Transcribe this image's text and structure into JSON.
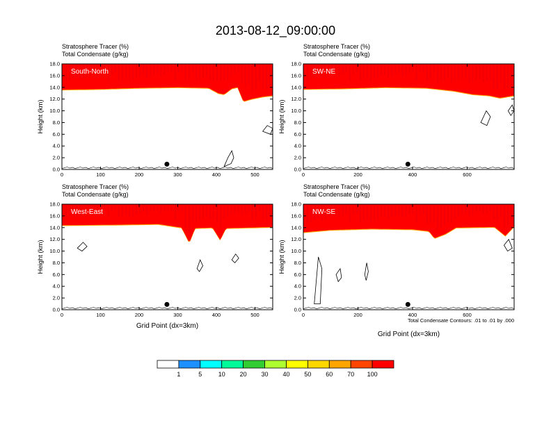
{
  "title": "2013-08-12_09:00:00",
  "colors": {
    "bands": [
      "#ffffff",
      "#1e90ff",
      "#00ffff",
      "#00fa9a",
      "#32cd32",
      "#adff2f",
      "#ffff00",
      "#ffd700",
      "#ffa500",
      "#ff4500",
      "#ff0000"
    ]
  },
  "colorbar": {
    "labels": [
      "1",
      "5",
      "10",
      "20",
      "30",
      "40",
      "50",
      "60",
      "70",
      "100"
    ]
  },
  "footnote": "Total Condensate Contours: .01 to .01 by .000",
  "chart_data": [
    {
      "type": "heatmap",
      "panel": "South-North",
      "left_title_1": "Stratosphere Tracer   (%)",
      "left_title_2": "Total Condensate   (g/kg)",
      "ylabel": "Height (km)",
      "xlabel": "",
      "xlim": [
        0,
        546
      ],
      "ylim": [
        0,
        18
      ],
      "xticks": [
        "0",
        "100",
        "200",
        "300",
        "400",
        "500"
      ],
      "xtick_values": [
        0,
        100,
        200,
        300,
        400,
        500
      ],
      "yticks": [
        "0.0",
        "2.0",
        "4.0",
        "6.0",
        "8.0",
        "10.0",
        "12.0",
        "14.0",
        "16.0",
        "18.0"
      ],
      "marker_x": 272,
      "tracer_base_km": [
        [
          0,
          13.2
        ],
        [
          100,
          13.3
        ],
        [
          200,
          13.5
        ],
        [
          300,
          13.6
        ],
        [
          380,
          13.5
        ],
        [
          405,
          12.6
        ],
        [
          420,
          12.4
        ],
        [
          440,
          13.4
        ],
        [
          455,
          13.6
        ],
        [
          470,
          11.2
        ],
        [
          490,
          11.6
        ],
        [
          520,
          12.0
        ],
        [
          546,
          12.2
        ]
      ],
      "condensate_contours": [
        [
          [
            420,
            0.5
          ],
          [
            430,
            2.0
          ],
          [
            440,
            3.2
          ],
          [
            445,
            2.0
          ],
          [
            438,
            1.0
          ]
        ],
        [
          [
            520,
            6.5
          ],
          [
            532,
            7.5
          ],
          [
            546,
            7.0
          ],
          [
            540,
            6.0
          ]
        ]
      ]
    },
    {
      "type": "heatmap",
      "panel": "SW-NE",
      "left_title_1": "Stratosphere Tracer   (%)",
      "left_title_2": "Total Condensate   (g/kg)",
      "ylabel": "Height (km)",
      "xlabel": "",
      "xlim": [
        0,
        772
      ],
      "ylim": [
        0,
        18
      ],
      "xticks": [
        "0",
        "200",
        "400",
        "600"
      ],
      "xtick_values": [
        0,
        200,
        400,
        600
      ],
      "yticks": [
        "0.0",
        "2.0",
        "4.0",
        "6.0",
        "8.0",
        "10.0",
        "12.0",
        "14.0",
        "16.0",
        "18.0"
      ],
      "marker_x": 383,
      "tracer_base_km": [
        [
          0,
          13.3
        ],
        [
          150,
          13.4
        ],
        [
          300,
          13.6
        ],
        [
          450,
          13.5
        ],
        [
          550,
          13.0
        ],
        [
          620,
          12.4
        ],
        [
          680,
          12.2
        ],
        [
          720,
          11.8
        ],
        [
          772,
          12.2
        ]
      ],
      "condensate_contours": [
        [
          [
            650,
            8.0
          ],
          [
            670,
            10.0
          ],
          [
            685,
            9.0
          ],
          [
            672,
            7.5
          ]
        ],
        [
          [
            750,
            10.0
          ],
          [
            765,
            11.0
          ],
          [
            772,
            10.0
          ],
          [
            760,
            9.2
          ]
        ]
      ]
    },
    {
      "type": "heatmap",
      "panel": "West-East",
      "left_title_1": "Stratosphere Tracer   (%)",
      "left_title_2": "Total Condensate   (g/kg)",
      "ylabel": "Height (km)",
      "xlabel": "Grid Point (dx=3km)",
      "xlim": [
        0,
        546
      ],
      "ylim": [
        0,
        18
      ],
      "xticks": [
        "0",
        "100",
        "200",
        "300",
        "400",
        "500"
      ],
      "xtick_values": [
        0,
        100,
        200,
        300,
        400,
        500
      ],
      "yticks": [
        "0.0",
        "2.0",
        "4.0",
        "6.0",
        "8.0",
        "10.0",
        "12.0",
        "14.0",
        "16.0",
        "18.0"
      ],
      "marker_x": 272,
      "tracer_base_km": [
        [
          0,
          14.0
        ],
        [
          150,
          14.1
        ],
        [
          250,
          14.2
        ],
        [
          310,
          13.6
        ],
        [
          330,
          11.0
        ],
        [
          345,
          13.5
        ],
        [
          390,
          13.6
        ],
        [
          410,
          11.5
        ],
        [
          425,
          13.5
        ],
        [
          546,
          13.7
        ]
      ],
      "condensate_contours": [
        [
          [
            40,
            10.5
          ],
          [
            55,
            11.5
          ],
          [
            65,
            10.8
          ],
          [
            52,
            10.0
          ]
        ],
        [
          [
            350,
            7.0
          ],
          [
            358,
            8.5
          ],
          [
            365,
            7.5
          ],
          [
            356,
            6.5
          ]
        ],
        [
          [
            440,
            8.5
          ],
          [
            450,
            9.5
          ],
          [
            458,
            8.8
          ],
          [
            448,
            8.0
          ]
        ]
      ]
    },
    {
      "type": "heatmap",
      "panel": "NW-SE",
      "left_title_1": "Stratosphere Tracer   (%)",
      "left_title_2": "Total Condensate   (g/kg)",
      "ylabel": "Height (km)",
      "xlabel": "Grid Point (dx=3km)",
      "xlim": [
        0,
        772
      ],
      "ylim": [
        0,
        18
      ],
      "xticks": [
        "0",
        "200",
        "400",
        "600"
      ],
      "xtick_values": [
        0,
        200,
        400,
        600
      ],
      "yticks": [
        "0.0",
        "2.0",
        "4.0",
        "6.0",
        "8.0",
        "10.0",
        "12.0",
        "14.0",
        "16.0",
        "18.0"
      ],
      "marker_x": 383,
      "tracer_base_km": [
        [
          0,
          12.8
        ],
        [
          100,
          13.2
        ],
        [
          250,
          13.4
        ],
        [
          400,
          13.3
        ],
        [
          460,
          13.0
        ],
        [
          480,
          11.8
        ],
        [
          520,
          12.5
        ],
        [
          560,
          13.6
        ],
        [
          700,
          13.7
        ],
        [
          740,
          12.2
        ],
        [
          772,
          13.8
        ]
      ],
      "condensate_contours": [
        [
          [
            40,
            1.0
          ],
          [
            55,
            9.0
          ],
          [
            68,
            7.0
          ],
          [
            62,
            1.0
          ]
        ],
        [
          [
            120,
            6.0
          ],
          [
            135,
            7.0
          ],
          [
            140,
            5.5
          ],
          [
            128,
            4.8
          ]
        ],
        [
          [
            225,
            6.0
          ],
          [
            232,
            8.0
          ],
          [
            238,
            6.5
          ],
          [
            230,
            5.0
          ]
        ],
        [
          [
            735,
            11.0
          ],
          [
            752,
            12.0
          ],
          [
            765,
            10.5
          ],
          [
            748,
            10.0
          ]
        ]
      ]
    }
  ]
}
